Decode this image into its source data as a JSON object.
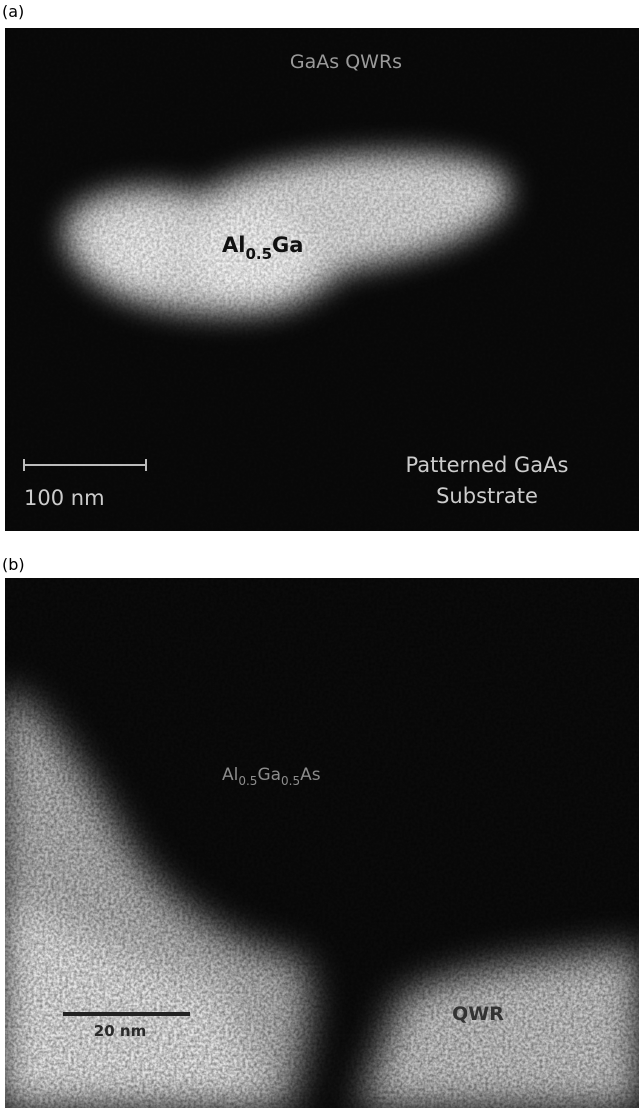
{
  "panel_a": {
    "label": "(a)",
    "top_label": "GaAs QWRs",
    "center_label": [
      "Al",
      "0.5",
      "Ga"
    ],
    "scale_bar": "100 nm",
    "bottom_label": [
      "Patterned GaAs",
      "Substrate"
    ]
  },
  "panel_b": {
    "label": "(b)",
    "center_label": [
      "Al",
      "0.5",
      "Ga",
      "0.5",
      "As"
    ],
    "scale_bar": "20 nm",
    "region_label": "QWR"
  }
}
